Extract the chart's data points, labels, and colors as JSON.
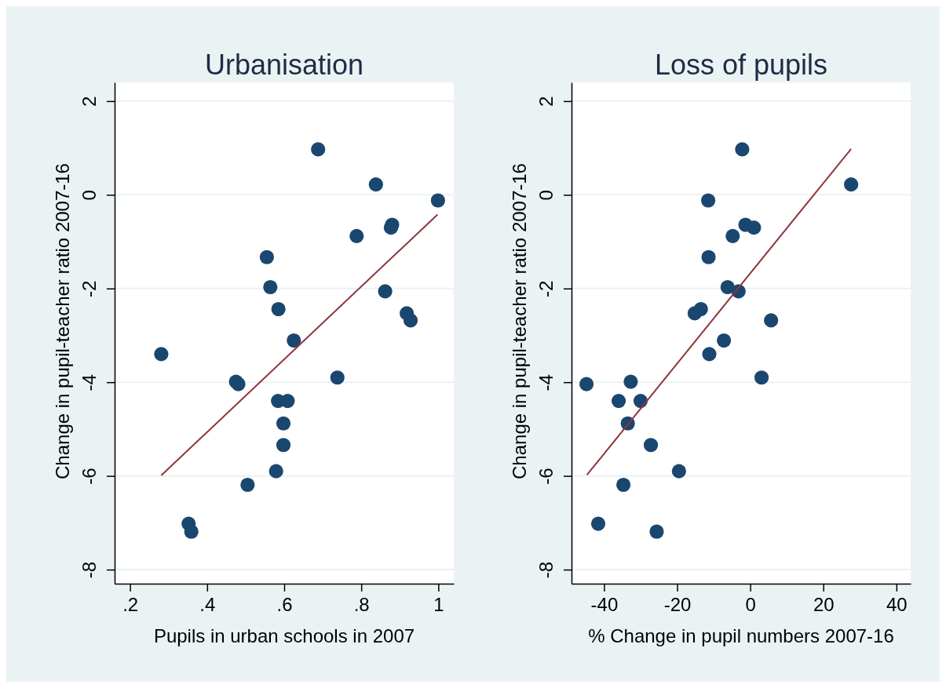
{
  "chart_data": [
    {
      "type": "scatter",
      "title": "Urbanisation",
      "xlabel": "Pupils in urban schools in 2007",
      "ylabel": "Change in pupil-teacher ratio 2007-16",
      "grid": "y",
      "marker": "circle",
      "xlim": [
        0.16,
        1.04
      ],
      "xticks": [
        {
          "value": 0.2,
          "label": ".2"
        },
        {
          "value": 0.4,
          "label": ".4"
        },
        {
          "value": 0.6,
          "label": ".6"
        },
        {
          "value": 0.8,
          "label": ".8"
        },
        1
      ],
      "ylim": [
        -8.3,
        2.4
      ],
      "yticks": [
        -8,
        -6,
        -4,
        -2,
        0,
        2
      ],
      "series": [
        {
          "color": "#1a476f",
          "x": [
            0.688,
            0.838,
            0.999,
            0.88,
            0.877,
            0.788,
            0.555,
            0.564,
            0.585,
            0.862,
            0.918,
            0.928,
            0.625,
            0.281,
            0.475,
            0.481,
            0.738,
            0.584,
            0.609,
            0.598,
            0.598,
            0.579,
            0.505,
            0.352,
            0.359
          ],
          "values": [
            0.97,
            0.22,
            -0.12,
            -0.64,
            -0.7,
            -0.88,
            -1.33,
            -1.97,
            -2.44,
            -2.06,
            -2.53,
            -2.68,
            -3.11,
            -3.4,
            -3.99,
            -4.04,
            -3.9,
            -4.4,
            -4.4,
            -4.88,
            -5.34,
            -5.9,
            -6.19,
            -7.02,
            -7.19
          ]
        },
        {
          "type": "line",
          "marker": "none",
          "color": "#90353b",
          "x": [
            0.281,
            0.998
          ],
          "values": [
            -5.99,
            -0.42
          ]
        }
      ]
    },
    {
      "type": "scatter",
      "title": "Loss of pupils",
      "xlabel": "% Change in pupil numbers 2007-16",
      "ylabel": "Change in pupil-teacher ratio 2007-16",
      "grid": "y",
      "marker": "circle",
      "xlim": [
        -48.9,
        43.9
      ],
      "xticks": [
        -40,
        -20,
        0,
        20,
        40
      ],
      "ylim": [
        -8.3,
        2.4
      ],
      "yticks": [
        -8,
        -6,
        -4,
        -2,
        0,
        2
      ],
      "series": [
        {
          "color": "#1a476f",
          "x": [
            -2.2,
            27.6,
            -11.5,
            -1.3,
            1.0,
            -4.8,
            -11.4,
            -6.2,
            -3.2,
            -13.5,
            -15.2,
            5.7,
            -7.2,
            -11.2,
            -44.8,
            -32.7,
            3.1,
            -36.0,
            -30.0,
            -33.5,
            -27.2,
            -19.5,
            -34.7,
            -41.6,
            -25.6
          ],
          "values": [
            0.97,
            0.22,
            -0.12,
            -0.64,
            -0.7,
            -0.88,
            -1.33,
            -1.97,
            -2.06,
            -2.44,
            -2.53,
            -2.68,
            -3.11,
            -3.4,
            -4.04,
            -3.99,
            -3.9,
            -4.4,
            -4.4,
            -4.88,
            -5.34,
            -5.9,
            -6.19,
            -7.02,
            -7.19
          ]
        },
        {
          "type": "line",
          "marker": "none",
          "color": "#90353b",
          "x": [
            -44.7,
            27.6
          ],
          "values": [
            -5.98,
            0.98
          ]
        }
      ]
    }
  ]
}
